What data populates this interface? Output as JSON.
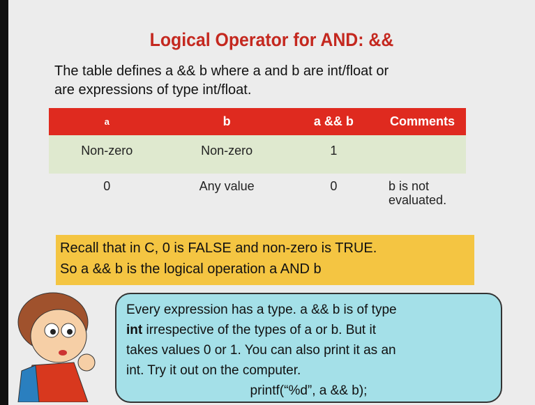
{
  "title": "Logical  Operator for AND: &&",
  "intro": [
    "The table defines  a && b where a and b are int/float or",
    "are expressions  of type int/float."
  ],
  "table": {
    "header": [
      "a",
      "b",
      "a && b",
      "Comments"
    ],
    "rows": [
      [
        "Non-zero",
        "Non-zero",
        "1",
        ""
      ],
      [
        "0",
        "Any value",
        "0",
        "b is not evaluated."
      ]
    ]
  },
  "recall": [
    "Recall that in C, 0 is FALSE and non-zero is TRUE.",
    "So a && b is the logical operation  a AND b"
  ],
  "bubble": {
    "line1": "Every expression  has a type. a && b is of type",
    "line2_bold": "int",
    "line2_rest": " irrespective of the types of a or b. But it",
    "line3": "takes values 0 or 1. You can also print it as an",
    "line4": "int. Try it out on the computer.",
    "code": "printf(“%d”, a && b);"
  }
}
